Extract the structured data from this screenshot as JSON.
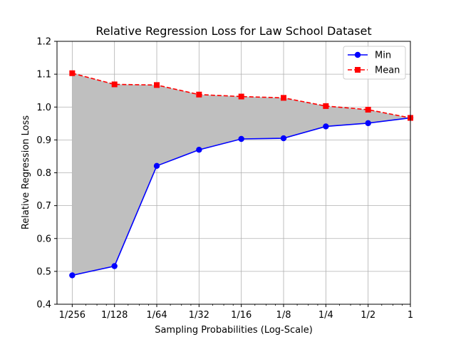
{
  "chart_data": {
    "type": "line",
    "title": "Relative Regression Loss for Law School Dataset",
    "xlabel": "Sampling Probabilities (Log-Scale)",
    "ylabel": "Relative Regression Loss",
    "x_scale": "log2",
    "x": [
      0.00390625,
      0.0078125,
      0.015625,
      0.03125,
      0.0625,
      0.125,
      0.25,
      0.5,
      1
    ],
    "x_tick_labels": [
      "1/256",
      "1/128",
      "1/64",
      "1/32",
      "1/16",
      "1/8",
      "1/4",
      "1/2",
      "1"
    ],
    "ylim": [
      0.4,
      1.2
    ],
    "y_ticks": [
      "0.4",
      "0.5",
      "0.6",
      "0.7",
      "0.8",
      "0.9",
      "1.0",
      "1.1",
      "1.2"
    ],
    "grid": true,
    "legend_position": "top-right",
    "fill_between": {
      "lower": "Min",
      "upper": "Mean",
      "color": "#bfbfbf"
    },
    "series": [
      {
        "name": "Min",
        "color": "#0000ff",
        "line_style": "solid",
        "marker": "circle",
        "values": [
          0.488,
          0.516,
          0.821,
          0.87,
          0.903,
          0.905,
          0.941,
          0.951,
          0.967
        ]
      },
      {
        "name": "Mean",
        "color": "#ff0000",
        "line_style": "dashed",
        "marker": "square",
        "values": [
          1.103,
          1.069,
          1.067,
          1.038,
          1.032,
          1.028,
          1.003,
          0.992,
          0.967
        ]
      }
    ]
  }
}
